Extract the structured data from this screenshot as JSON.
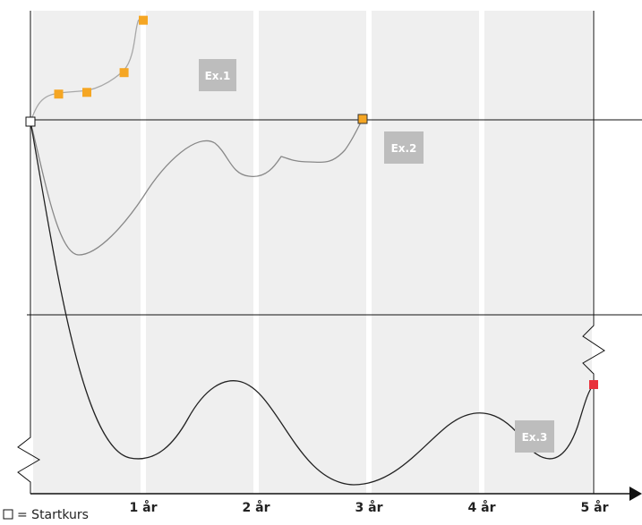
{
  "chart_data": {
    "type": "line",
    "xlabel": "",
    "ylabel": "",
    "x_tick_labels": [
      "1 år",
      "2 år",
      "3 år",
      "4 år",
      "5 år"
    ],
    "xlim": [
      0,
      5
    ],
    "grid": "vertical bands per year",
    "examples": [
      {
        "label": "Ex.1",
        "end_marker_color": "#f5a623",
        "observation_points": [
          {
            "x": 0.25,
            "y": 0.3
          },
          {
            "x": 0.5,
            "y": 0.32
          },
          {
            "x": 0.83,
            "y": 0.55
          },
          {
            "x": 1.0,
            "y": 1.16
          }
        ]
      },
      {
        "label": "Ex.2",
        "end_marker_color": "#f5a623",
        "end_x": 2.95,
        "end_y": 0
      },
      {
        "label": "Ex.3",
        "end_marker_color": "#e8323c",
        "end_x": 5.0
      }
    ],
    "legend": {
      "symbol": "□",
      "text": "= Startkurs"
    },
    "colors": {
      "band": "#efefef",
      "curve_light": "#999999",
      "curve_mid": "#777777",
      "curve_dark": "#222222",
      "axis": "#111111",
      "label_box": "#bdbdbd"
    }
  }
}
